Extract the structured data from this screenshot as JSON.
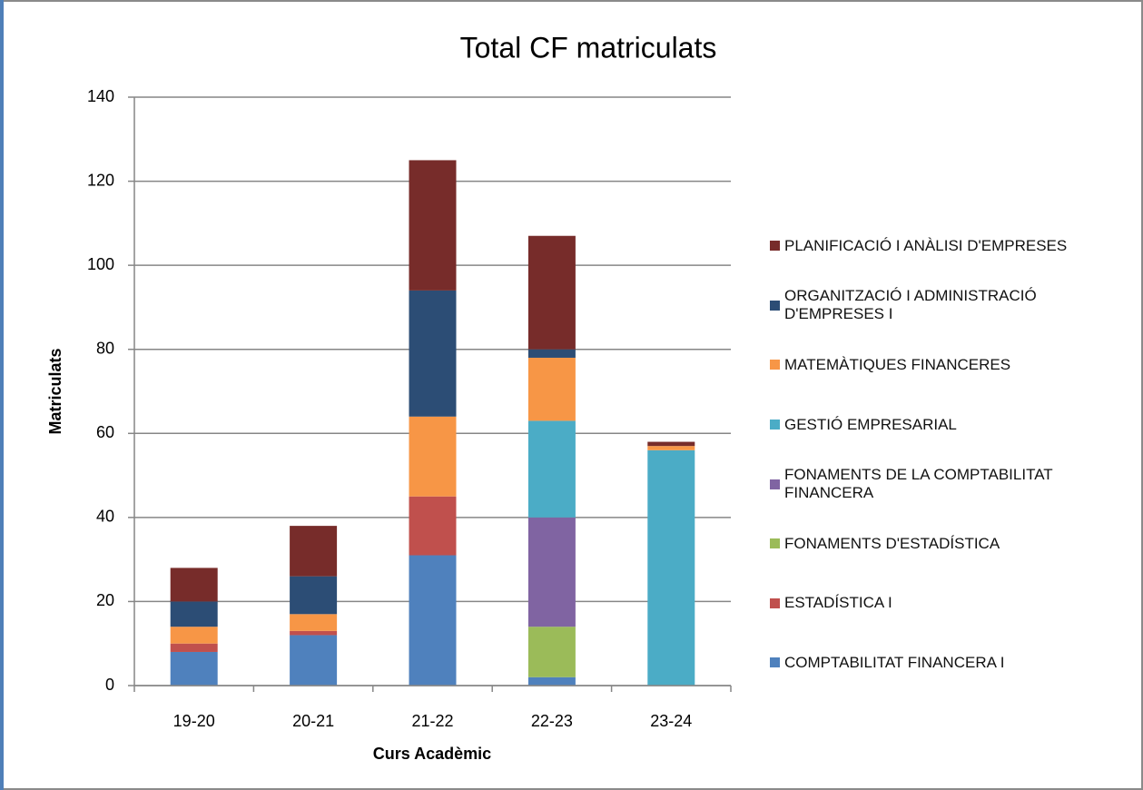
{
  "chart_data": {
    "type": "stacked_bar",
    "title": "Total  CF matriculats",
    "x_label": "Curs Acadèmic",
    "y_label": "Matriculats",
    "categories": [
      "19-20",
      "20-21",
      "21-22",
      "22-23",
      "23-24"
    ],
    "series": [
      {
        "name": "COMPTABILITAT FINANCERA I",
        "color": "#4f81bd",
        "values": [
          8,
          12,
          31,
          2,
          0
        ]
      },
      {
        "name": "ESTADÍSTICA I",
        "color": "#c0504d",
        "values": [
          2,
          1,
          14,
          0,
          0
        ]
      },
      {
        "name": "FONAMENTS D'ESTADÍSTICA",
        "color": "#9bbb59",
        "values": [
          0,
          0,
          0,
          12,
          0
        ]
      },
      {
        "name": "FONAMENTS DE LA COMPTABILITAT FINANCERA",
        "color": "#8064a2",
        "values": [
          0,
          0,
          0,
          26,
          0
        ]
      },
      {
        "name": "GESTIÓ EMPRESARIAL",
        "color": "#4bacc6",
        "values": [
          0,
          0,
          0,
          23,
          56
        ]
      },
      {
        "name": "MATEMÀTIQUES FINANCERES",
        "color": "#f79646",
        "values": [
          4,
          4,
          19,
          15,
          1
        ]
      },
      {
        "name": "ORGANITZACIÓ I ADMINISTRACIÓ D'EMPRESES I",
        "color": "#2c4d75",
        "values": [
          6,
          9,
          30,
          2,
          0
        ]
      },
      {
        "name": "PLANIFICACIÓ I ANÀLISI D'EMPRESES",
        "color": "#772c2a",
        "values": [
          8,
          12,
          31,
          27,
          1
        ]
      }
    ],
    "ylim": [
      0,
      140
    ],
    "yticks": [
      0,
      20,
      40,
      60,
      80,
      100,
      120,
      140
    ],
    "grid": true,
    "legend": "right"
  }
}
